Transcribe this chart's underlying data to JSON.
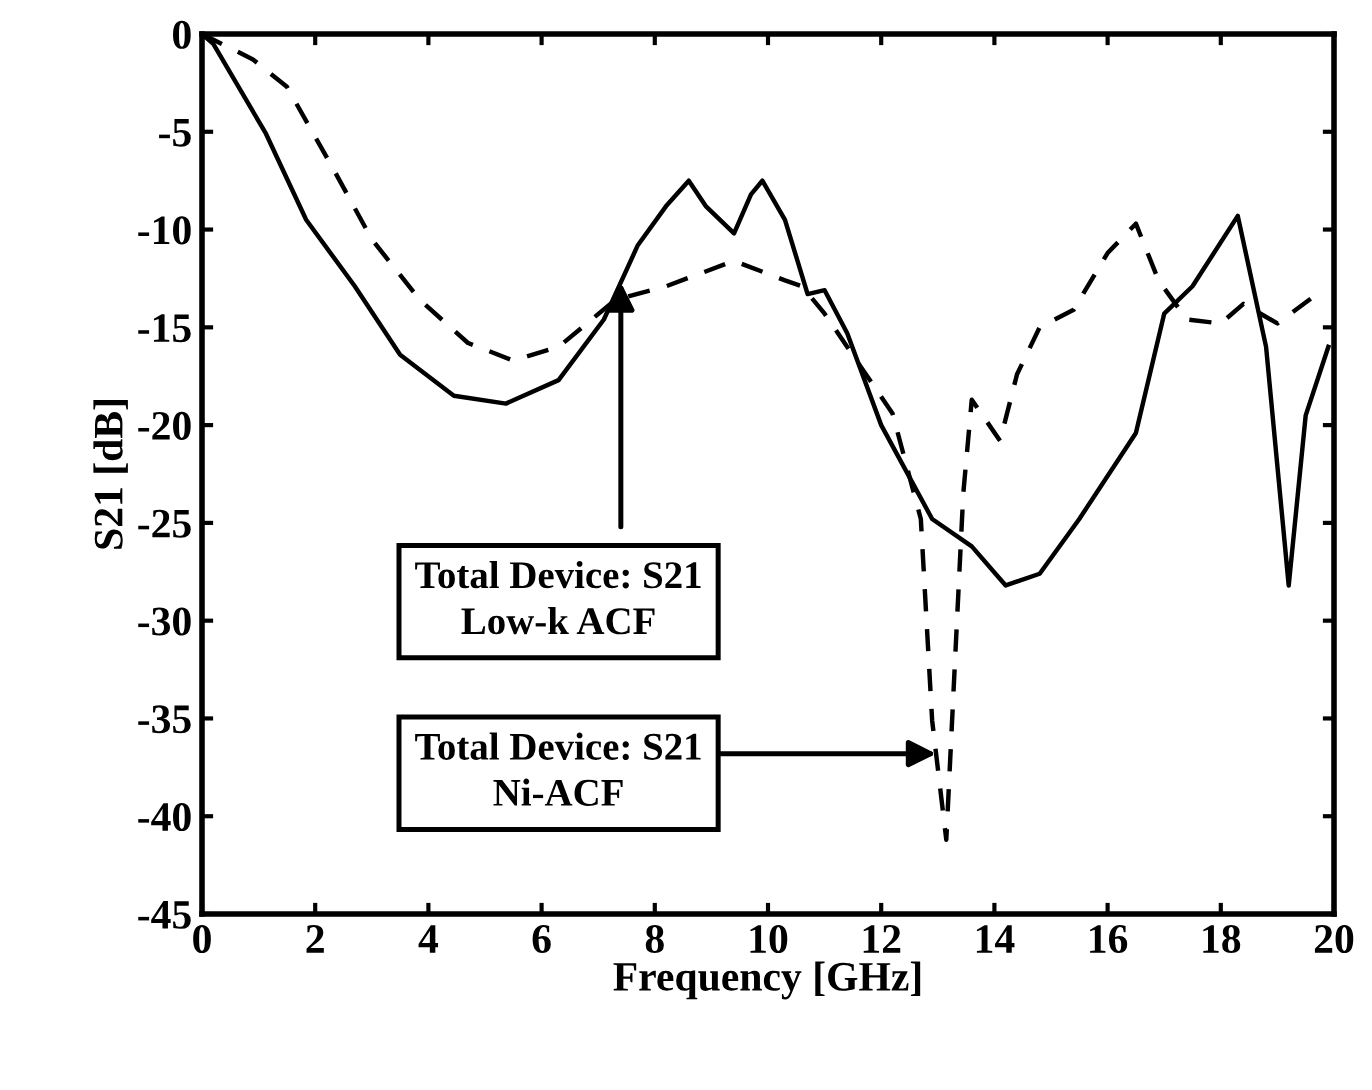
{
  "chart_data": {
    "type": "line",
    "xlabel": "Frequency [GHz]",
    "ylabel": "S21 [dB]",
    "xlim": [
      0,
      20
    ],
    "ylim": [
      -45,
      0
    ],
    "xticks": [
      0,
      2,
      4,
      6,
      8,
      10,
      12,
      14,
      16,
      18,
      20
    ],
    "yticks": [
      0,
      -5,
      -10,
      -15,
      -20,
      -25,
      -30,
      -35,
      -40,
      -45
    ],
    "grid": false,
    "legend": false,
    "marker": "none",
    "series": [
      {
        "color": "#000000",
        "line_style": "solid",
        "x": [
          0,
          0.2,
          1.13,
          1.84,
          2.7,
          3.5,
          4.45,
          5.37,
          6.3,
          7.1,
          7.7,
          8.2,
          8.6,
          8.9,
          9.4,
          9.7,
          9.9,
          10.3,
          10.7,
          11.0,
          11.4,
          12.0,
          12.9,
          13.6,
          14.2,
          14.8,
          15.5,
          16.5,
          17.0,
          17.5,
          18.3,
          18.8,
          19.2,
          19.5,
          19.9
        ],
        "values": [
          0,
          -0.5,
          -5.1,
          -9.5,
          -12.9,
          -16.4,
          -18.5,
          -18.9,
          -17.7,
          -14.6,
          -10.8,
          -8.8,
          -7.5,
          -8.8,
          -10.2,
          -8.2,
          -7.5,
          -9.5,
          -13.3,
          -13.1,
          -15.3,
          -20.0,
          -24.8,
          -26.2,
          -28.2,
          -27.6,
          -24.8,
          -20.4,
          -14.3,
          -12.9,
          -9.3,
          -16.0,
          -28.2,
          -19.5,
          -16.0
        ]
      },
      {
        "color": "#000000",
        "line_style": "dashed",
        "x": [
          0,
          0.9,
          1.5,
          2.3,
          3.0,
          3.85,
          4.7,
          5.5,
          6.3,
          7.3,
          8.2,
          9.4,
          10.3,
          10.6,
          11.0,
          12.2,
          12.7,
          12.9,
          13.15,
          13.3,
          13.45,
          13.6,
          14.1,
          14.4,
          14.8,
          15.4,
          16.0,
          16.5,
          16.9,
          17.4,
          18.0,
          18.4,
          19.0,
          19.7
        ],
        "values": [
          0,
          -1.3,
          -2.7,
          -6.8,
          -10.5,
          -13.6,
          -15.8,
          -16.7,
          -16.0,
          -13.6,
          -12.9,
          -11.6,
          -12.6,
          -12.9,
          -14.3,
          -19.4,
          -24.8,
          -35.1,
          -41.2,
          -32.3,
          -23.5,
          -18.7,
          -20.8,
          -17.4,
          -15.0,
          -14.1,
          -11.2,
          -9.7,
          -12.6,
          -14.6,
          -14.8,
          -13.8,
          -14.8,
          -13.3
        ]
      }
    ],
    "annotations": [
      {
        "text": "Total Device: S21\nLow-k ACF",
        "x": 7.4,
        "y": -12.7
      },
      {
        "text": "Total Device: S21\nNi-ACF",
        "x": 12.97,
        "y": -36.8
      }
    ]
  }
}
